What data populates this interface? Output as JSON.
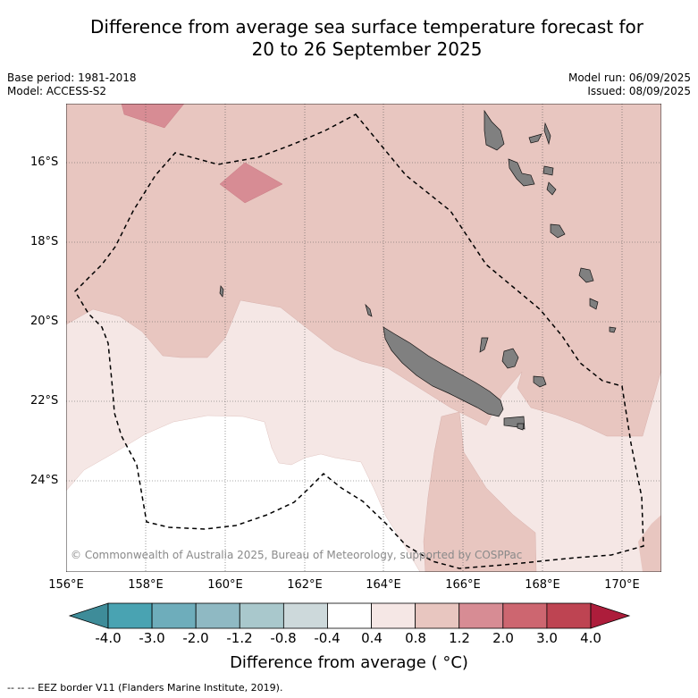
{
  "title_line1": "Difference from average sea surface temperature forecast for",
  "title_line2": "20 to 26 September 2025",
  "base_period": "Base period: 1981-2018",
  "model": "Model: ACCESS-S2",
  "model_run": "Model run: 06/09/2025",
  "issued": "Issued: 08/09/2025",
  "lat_labels": [
    "16°S",
    "18°S",
    "20°S",
    "22°S",
    "24°S"
  ],
  "lon_labels": [
    "156°E",
    "158°E",
    "160°E",
    "162°E",
    "164°E",
    "166°E",
    "168°E",
    "170°E"
  ],
  "copyright": "© Commonwealth of Australia 2025, Bureau of Meteorology, supported by COSPPac",
  "colorbar": {
    "ticks": [
      "-4.0",
      "-3.0",
      "-2.0",
      "-1.2",
      "-0.8",
      "-0.4",
      "0.4",
      "0.8",
      "1.2",
      "2.0",
      "3.0",
      "4.0"
    ],
    "colors": [
      "#3e8c99",
      "#49a3b2",
      "#6eadbb",
      "#8fb9c3",
      "#a9c8cc",
      "#cdd9db",
      "#ffffff",
      "#f5e7e5",
      "#e8c6c0",
      "#d78c94",
      "#cd6670",
      "#be4452",
      "#ad1d3b"
    ],
    "title": "Difference from average ( °C)"
  },
  "eez_note": "-- -- -- EEZ border V11 (Flanders Marine Institute, 2019)."
}
